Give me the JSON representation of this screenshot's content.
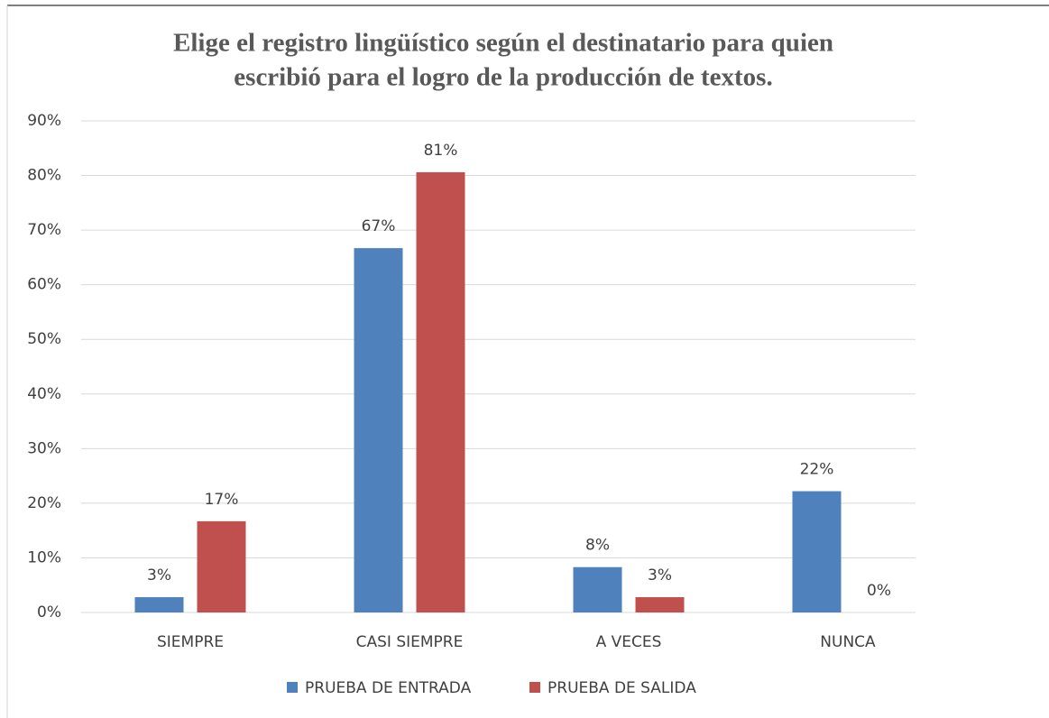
{
  "chart_data": {
    "type": "bar",
    "title": [
      "Elige el registro lingüístico según el destinatario para quien",
      "escribió para el logro de la producción de textos."
    ],
    "categories": [
      "SIEMPRE",
      "CASI SIEMPRE",
      "A VECES",
      "NUNCA"
    ],
    "series": [
      {
        "name": "PRUEBA DE ENTRADA",
        "color": "#4f81bd",
        "values": [
          2.8,
          66.7,
          8.3,
          22.2
        ],
        "value_labels": [
          "3%",
          "67%",
          "8%",
          "22%"
        ]
      },
      {
        "name": "PRUEBA DE SALIDA",
        "color": "#c0504d",
        "values": [
          16.7,
          80.6,
          2.8,
          0
        ],
        "value_labels": [
          "17%",
          "81%",
          "3%",
          "0%"
        ]
      }
    ],
    "ylim": [
      0,
      90
    ],
    "yticks": [
      {
        "value": 0,
        "label": "0%"
      },
      {
        "value": 10,
        "label": "10%"
      },
      {
        "value": 20,
        "label": "20%"
      },
      {
        "value": 30,
        "label": "30%"
      },
      {
        "value": 40,
        "label": "40%"
      },
      {
        "value": 50,
        "label": "50%"
      },
      {
        "value": 60,
        "label": "60%"
      },
      {
        "value": 70,
        "label": "70%"
      },
      {
        "value": 80,
        "label": "80%"
      },
      {
        "value": 90,
        "label": "90%"
      }
    ],
    "grid": true,
    "legend": "bottom"
  }
}
